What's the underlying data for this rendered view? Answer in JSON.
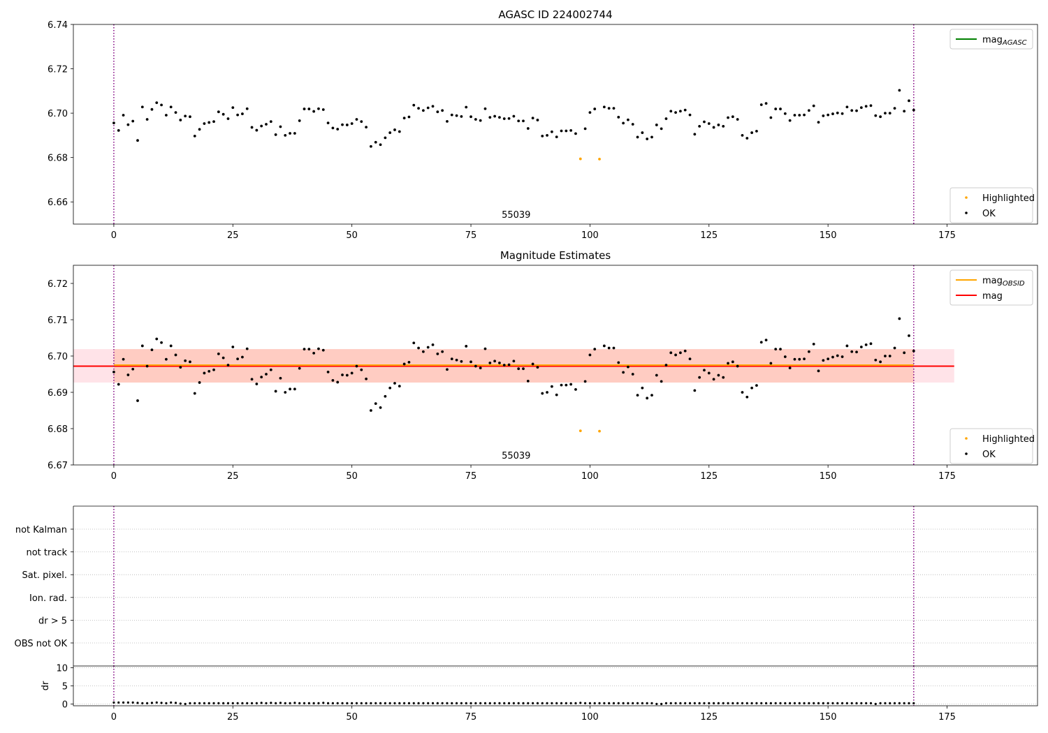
{
  "chart_data": [
    {
      "type": "scatter",
      "title": "AGASC ID 224002744",
      "xlim": [
        -8.5,
        194
      ],
      "ylim": [
        6.65,
        6.74
      ],
      "xticks": [
        0,
        25,
        50,
        75,
        100,
        125,
        150,
        175
      ],
      "yticks": [
        6.66,
        6.68,
        6.7,
        6.72,
        6.74
      ],
      "ytick_labels": [
        "6.66",
        "6.68",
        "6.70",
        "6.72",
        "6.74"
      ],
      "obsid_label": "55039",
      "obsid_label_x": 84.5,
      "vlines": [
        0,
        168
      ],
      "legend_upper": [
        {
          "label": "mag",
          "sub": "AGASC",
          "color": "#008000",
          "kind": "line"
        }
      ],
      "legend_lower": [
        {
          "label": "Highlighted",
          "color": "#ffa500",
          "kind": "dot"
        },
        {
          "label": "OK",
          "color": "#000000",
          "kind": "dot"
        }
      ]
    },
    {
      "type": "scatter",
      "title": "Magnitude Estimates",
      "xlim": [
        -8.5,
        194
      ],
      "ylim": [
        6.67,
        6.725
      ],
      "xticks": [
        0,
        25,
        50,
        75,
        100,
        125,
        150,
        175
      ],
      "yticks": [
        6.67,
        6.68,
        6.69,
        6.7,
        6.71,
        6.72
      ],
      "ytick_labels": [
        "6.67",
        "6.68",
        "6.69",
        "6.70",
        "6.71",
        "6.72"
      ],
      "obsid_label": "55039",
      "obsid_label_x": 84.5,
      "vlines": [
        0,
        168
      ],
      "mag": 6.6972,
      "mag_band": [
        6.6927,
        6.7019
      ],
      "mag_xrange": [
        -8.5,
        176.5
      ],
      "mag_obsid": 6.6972,
      "mag_obsid_band": [
        6.6927,
        6.7019
      ],
      "mag_obsid_xrange": [
        0,
        168
      ],
      "legend_upper": [
        {
          "label": "mag",
          "sub": "OBSID",
          "color": "#ffa500",
          "kind": "line"
        },
        {
          "label": "mag",
          "sub": "",
          "color": "#ff0000",
          "kind": "line"
        }
      ],
      "legend_lower": [
        {
          "label": "Highlighted",
          "color": "#ffa500",
          "kind": "dot"
        },
        {
          "label": "OK",
          "color": "#000000",
          "kind": "dot"
        }
      ]
    },
    {
      "type": "scatter",
      "xlim": [
        -8.5,
        194
      ],
      "flag_labels": [
        "not Kalman",
        "not track",
        "Sat. pixel.",
        "Ion. rad.",
        "dr > 5",
        "OBS not OK"
      ],
      "vlines": [
        0,
        168
      ]
    },
    {
      "type": "scatter",
      "ylabel": "dr",
      "xlim": [
        -8.5,
        194
      ],
      "ylim": [
        -0.5,
        10.5
      ],
      "xticks": [
        0,
        25,
        50,
        75,
        100,
        125,
        150,
        175
      ],
      "yticks": [
        0,
        5,
        10
      ],
      "vlines": [
        0,
        168
      ]
    }
  ],
  "series": {
    "ok": [
      [
        0,
        6.6956
      ],
      [
        1,
        6.6922
      ],
      [
        2,
        6.6991
      ],
      [
        3,
        6.6948
      ],
      [
        4,
        6.6964
      ],
      [
        5,
        6.6877
      ],
      [
        6,
        6.7028
      ],
      [
        7,
        6.6972
      ],
      [
        8,
        6.7017
      ],
      [
        9,
        6.7047
      ],
      [
        10,
        6.7037
      ],
      [
        11,
        6.6991
      ],
      [
        12,
        6.7028
      ],
      [
        13,
        6.7003
      ],
      [
        14,
        6.6969
      ],
      [
        15,
        6.6987
      ],
      [
        16,
        6.6984
      ],
      [
        17,
        6.6897
      ],
      [
        18,
        6.6927
      ],
      [
        19,
        6.6953
      ],
      [
        20,
        6.6958
      ],
      [
        21,
        6.6962
      ],
      [
        22,
        6.7006
      ],
      [
        23,
        6.6995
      ],
      [
        24,
        6.6975
      ],
      [
        25,
        6.7025
      ],
      [
        26,
        6.6992
      ],
      [
        27,
        6.6997
      ],
      [
        28,
        6.702
      ],
      [
        29,
        6.6936
      ],
      [
        30,
        6.6923
      ],
      [
        31,
        6.6942
      ],
      [
        32,
        6.695
      ],
      [
        33,
        6.6962
      ],
      [
        34,
        6.6903
      ],
      [
        35,
        6.6939
      ],
      [
        36,
        6.69
      ],
      [
        37,
        6.6909
      ],
      [
        38,
        6.6909
      ],
      [
        39,
        6.6966
      ],
      [
        40,
        6.7019
      ],
      [
        41,
        6.7019
      ],
      [
        42,
        6.7008
      ],
      [
        43,
        6.702
      ],
      [
        44,
        6.7016
      ],
      [
        45,
        6.6956
      ],
      [
        46,
        6.6933
      ],
      [
        47,
        6.6928
      ],
      [
        48,
        6.6948
      ],
      [
        49,
        6.6947
      ],
      [
        50,
        6.6953
      ],
      [
        51,
        6.6972
      ],
      [
        52,
        6.6962
      ],
      [
        53,
        6.6937
      ],
      [
        54,
        6.685
      ],
      [
        55,
        6.6869
      ],
      [
        56,
        6.6858
      ],
      [
        57,
        6.6889
      ],
      [
        58,
        6.6912
      ],
      [
        59,
        6.6925
      ],
      [
        60,
        6.6917
      ],
      [
        61,
        6.6978
      ],
      [
        62,
        6.6983
      ],
      [
        63,
        6.7036
      ],
      [
        64,
        6.7022
      ],
      [
        65,
        6.7012
      ],
      [
        66,
        6.7024
      ],
      [
        67,
        6.7031
      ],
      [
        68,
        6.7006
      ],
      [
        69,
        6.7012
      ],
      [
        70,
        6.6963
      ],
      [
        71,
        6.6992
      ],
      [
        72,
        6.6989
      ],
      [
        73,
        6.6985
      ],
      [
        74,
        6.7027
      ],
      [
        75,
        6.6984
      ],
      [
        76,
        6.6972
      ],
      [
        77,
        6.6967
      ],
      [
        78,
        6.702
      ],
      [
        79,
        6.6981
      ],
      [
        80,
        6.6986
      ],
      [
        81,
        6.6981
      ],
      [
        82,
        6.6975
      ],
      [
        83,
        6.6976
      ],
      [
        84,
        6.6986
      ],
      [
        85,
        6.6965
      ],
      [
        86,
        6.6965
      ],
      [
        87,
        6.6931
      ],
      [
        88,
        6.6978
      ],
      [
        89,
        6.6969
      ],
      [
        90,
        6.6897
      ],
      [
        91,
        6.69
      ],
      [
        92,
        6.6916
      ],
      [
        93,
        6.6893
      ],
      [
        94,
        6.692
      ],
      [
        95,
        6.692
      ],
      [
        96,
        6.6922
      ],
      [
        97,
        6.6908
      ],
      [
        99,
        6.693
      ],
      [
        100,
        6.7003
      ],
      [
        101,
        6.7019
      ],
      [
        103,
        6.7028
      ],
      [
        104,
        6.7022
      ],
      [
        105,
        6.7022
      ],
      [
        106,
        6.6982
      ],
      [
        107,
        6.6955
      ],
      [
        108,
        6.697
      ],
      [
        109,
        6.695
      ],
      [
        110,
        6.6892
      ],
      [
        111,
        6.6912
      ],
      [
        112,
        6.6884
      ],
      [
        113,
        6.6892
      ],
      [
        114,
        6.6947
      ],
      [
        115,
        6.693
      ],
      [
        116,
        6.6975
      ],
      [
        117,
        6.7009
      ],
      [
        118,
        6.7003
      ],
      [
        119,
        6.7009
      ],
      [
        120,
        6.7014
      ],
      [
        121,
        6.6992
      ],
      [
        122,
        6.6905
      ],
      [
        123,
        6.6941
      ],
      [
        124,
        6.6961
      ],
      [
        125,
        6.6953
      ],
      [
        126,
        6.6936
      ],
      [
        127,
        6.6947
      ],
      [
        128,
        6.6941
      ],
      [
        129,
        6.698
      ],
      [
        130,
        6.6984
      ],
      [
        131,
        6.6972
      ],
      [
        132,
        6.69
      ],
      [
        133,
        6.6887
      ],
      [
        134,
        6.6912
      ],
      [
        135,
        6.6919
      ],
      [
        136,
        6.7038
      ],
      [
        137,
        6.7044
      ],
      [
        138,
        6.698
      ],
      [
        139,
        6.7019
      ],
      [
        140,
        6.7019
      ],
      [
        141,
        6.6998
      ],
      [
        142,
        6.6967
      ],
      [
        143,
        6.6991
      ],
      [
        144,
        6.6991
      ],
      [
        145,
        6.6992
      ],
      [
        146,
        6.7012
      ],
      [
        147,
        6.7033
      ],
      [
        148,
        6.6959
      ],
      [
        149,
        6.6988
      ],
      [
        150,
        6.6992
      ],
      [
        151,
        6.6997
      ],
      [
        152,
        6.7001
      ],
      [
        153,
        6.6998
      ],
      [
        154,
        6.7028
      ],
      [
        155,
        6.7012
      ],
      [
        156,
        6.7011
      ],
      [
        157,
        6.7025
      ],
      [
        158,
        6.7031
      ],
      [
        159,
        6.7034
      ],
      [
        160,
        6.6989
      ],
      [
        161,
        6.6984
      ],
      [
        162,
        6.7
      ],
      [
        163,
        6.7
      ],
      [
        164,
        6.7022
      ],
      [
        165,
        6.7103
      ],
      [
        166,
        6.7009
      ],
      [
        167,
        6.7056
      ],
      [
        168,
        6.7014
      ]
    ],
    "highlighted": [
      [
        98,
        6.6794
      ],
      [
        102,
        6.6793
      ]
    ],
    "dr": [
      [
        0,
        0.4
      ],
      [
        1,
        0.4
      ],
      [
        2,
        0.4
      ],
      [
        3,
        0.4
      ],
      [
        4,
        0.4
      ],
      [
        5,
        0.3
      ],
      [
        6,
        0.2
      ],
      [
        7,
        0.2
      ],
      [
        8,
        0.3
      ],
      [
        9,
        0.4
      ],
      [
        10,
        0.3
      ],
      [
        11,
        0.2
      ],
      [
        12,
        0.4
      ],
      [
        13,
        0.3
      ],
      [
        14,
        0.1
      ],
      [
        15,
        0.0
      ],
      [
        16,
        0.2
      ],
      [
        17,
        0.2
      ],
      [
        18,
        0.2
      ],
      [
        19,
        0.2
      ],
      [
        20,
        0.2
      ],
      [
        21,
        0.2
      ],
      [
        22,
        0.2
      ],
      [
        23,
        0.2
      ],
      [
        24,
        0.2
      ],
      [
        25,
        0.2
      ],
      [
        26,
        0.2
      ],
      [
        27,
        0.2
      ],
      [
        28,
        0.2
      ],
      [
        29,
        0.2
      ],
      [
        30,
        0.2
      ],
      [
        31,
        0.3
      ],
      [
        32,
        0.2
      ],
      [
        33,
        0.3
      ],
      [
        34,
        0.2
      ],
      [
        35,
        0.3
      ],
      [
        36,
        0.2
      ],
      [
        37,
        0.2
      ],
      [
        38,
        0.3
      ],
      [
        39,
        0.2
      ],
      [
        40,
        0.2
      ],
      [
        41,
        0.2
      ],
      [
        42,
        0.2
      ],
      [
        43,
        0.2
      ],
      [
        44,
        0.3
      ],
      [
        45,
        0.2
      ],
      [
        46,
        0.2
      ],
      [
        47,
        0.2
      ],
      [
        48,
        0.2
      ],
      [
        49,
        0.2
      ],
      [
        50,
        0.2
      ],
      [
        51,
        0.2
      ],
      [
        52,
        0.2
      ],
      [
        53,
        0.2
      ],
      [
        54,
        0.2
      ],
      [
        55,
        0.2
      ],
      [
        56,
        0.2
      ],
      [
        57,
        0.2
      ],
      [
        58,
        0.2
      ],
      [
        59,
        0.2
      ],
      [
        60,
        0.2
      ],
      [
        61,
        0.2
      ],
      [
        62,
        0.2
      ],
      [
        63,
        0.2
      ],
      [
        64,
        0.2
      ],
      [
        65,
        0.2
      ],
      [
        66,
        0.2
      ],
      [
        67,
        0.2
      ],
      [
        68,
        0.2
      ],
      [
        69,
        0.2
      ],
      [
        70,
        0.2
      ],
      [
        71,
        0.2
      ],
      [
        72,
        0.2
      ],
      [
        73,
        0.2
      ],
      [
        74,
        0.2
      ],
      [
        75,
        0.2
      ],
      [
        76,
        0.2
      ],
      [
        77,
        0.2
      ],
      [
        78,
        0.2
      ],
      [
        79,
        0.2
      ],
      [
        80,
        0.2
      ],
      [
        81,
        0.2
      ],
      [
        82,
        0.2
      ],
      [
        83,
        0.2
      ],
      [
        84,
        0.2
      ],
      [
        85,
        0.2
      ],
      [
        86,
        0.2
      ],
      [
        87,
        0.2
      ],
      [
        88,
        0.2
      ],
      [
        89,
        0.2
      ],
      [
        90,
        0.2
      ],
      [
        91,
        0.2
      ],
      [
        92,
        0.2
      ],
      [
        93,
        0.2
      ],
      [
        94,
        0.2
      ],
      [
        95,
        0.2
      ],
      [
        96,
        0.2
      ],
      [
        97,
        0.2
      ],
      [
        98,
        0.3
      ],
      [
        99,
        0.2
      ],
      [
        100,
        0.2
      ],
      [
        101,
        0.2
      ],
      [
        102,
        0.2
      ],
      [
        103,
        0.2
      ],
      [
        104,
        0.2
      ],
      [
        105,
        0.2
      ],
      [
        106,
        0.2
      ],
      [
        107,
        0.2
      ],
      [
        108,
        0.2
      ],
      [
        109,
        0.2
      ],
      [
        110,
        0.2
      ],
      [
        111,
        0.2
      ],
      [
        112,
        0.2
      ],
      [
        113,
        0.2
      ],
      [
        114,
        0.0
      ],
      [
        115,
        0.0
      ],
      [
        116,
        0.2
      ],
      [
        117,
        0.2
      ],
      [
        118,
        0.2
      ],
      [
        119,
        0.2
      ],
      [
        120,
        0.2
      ],
      [
        121,
        0.2
      ],
      [
        122,
        0.2
      ],
      [
        123,
        0.2
      ],
      [
        124,
        0.2
      ],
      [
        125,
        0.2
      ],
      [
        126,
        0.2
      ],
      [
        127,
        0.2
      ],
      [
        128,
        0.2
      ],
      [
        129,
        0.2
      ],
      [
        130,
        0.2
      ],
      [
        131,
        0.2
      ],
      [
        132,
        0.2
      ],
      [
        133,
        0.2
      ],
      [
        134,
        0.2
      ],
      [
        135,
        0.2
      ],
      [
        136,
        0.2
      ],
      [
        137,
        0.2
      ],
      [
        138,
        0.2
      ],
      [
        139,
        0.2
      ],
      [
        140,
        0.2
      ],
      [
        141,
        0.2
      ],
      [
        142,
        0.2
      ],
      [
        143,
        0.2
      ],
      [
        144,
        0.2
      ],
      [
        145,
        0.2
      ],
      [
        146,
        0.2
      ],
      [
        147,
        0.2
      ],
      [
        148,
        0.2
      ],
      [
        149,
        0.2
      ],
      [
        150,
        0.2
      ],
      [
        151,
        0.2
      ],
      [
        152,
        0.2
      ],
      [
        153,
        0.2
      ],
      [
        154,
        0.2
      ],
      [
        155,
        0.2
      ],
      [
        156,
        0.2
      ],
      [
        157,
        0.2
      ],
      [
        158,
        0.2
      ],
      [
        159,
        0.2
      ],
      [
        160,
        0.0
      ],
      [
        161,
        0.2
      ],
      [
        162,
        0.2
      ],
      [
        163,
        0.2
      ],
      [
        164,
        0.2
      ],
      [
        165,
        0.2
      ],
      [
        166,
        0.2
      ],
      [
        167,
        0.2
      ],
      [
        168,
        0.2
      ]
    ]
  },
  "colors": {
    "ok": "#000000",
    "highlighted": "#ffa500",
    "vline": "#800080",
    "mag_line": "#ff0000",
    "mag_band": "#ffc0cb",
    "mag_obsid_line": "#ffa500",
    "mag_obsid_band": "#ffa07a",
    "agasc_line": "#008000",
    "grid": "#b0b0b0"
  }
}
